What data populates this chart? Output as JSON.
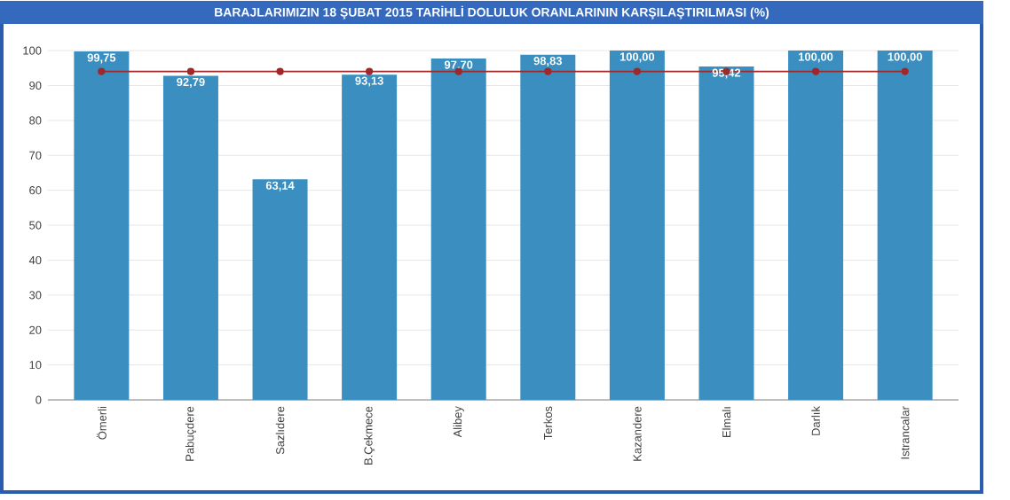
{
  "chart_data": {
    "type": "bar",
    "title": "BARAJLARIMIZIN 18 ŞUBAT 2015 TARİHLİ DOLULUK ORANLARININ KARŞILAŞTIRILMASI (%)",
    "categories": [
      "Ömerli",
      "Pabuçdere",
      "Sazlıdere",
      "B.Çekmece",
      "Alibey",
      "Terkos",
      "Kazandere",
      "Elmalı",
      "Darlık",
      "Istrancalar"
    ],
    "series": [
      {
        "color": "#3a8fc0",
        "values": [
          99.75,
          92.79,
          63.14,
          93.13,
          97.7,
          98.83,
          100.0,
          95.42,
          100.0,
          100.0
        ],
        "value_labels": [
          "99,75",
          "92,79",
          "63,14",
          "93,13",
          "97,70",
          "98,83",
          "100,00",
          "95,42",
          "100,00",
          "100,00"
        ]
      },
      {
        "type": "line",
        "color": "#a02828",
        "marker": "circle",
        "values": [
          94,
          94,
          94,
          94,
          94,
          94,
          94,
          94,
          94,
          94
        ]
      }
    ],
    "ylim": [
      0,
      100
    ],
    "yticks": [
      0,
      10,
      20,
      30,
      40,
      50,
      60,
      70,
      80,
      90,
      100
    ],
    "grid": "y"
  }
}
